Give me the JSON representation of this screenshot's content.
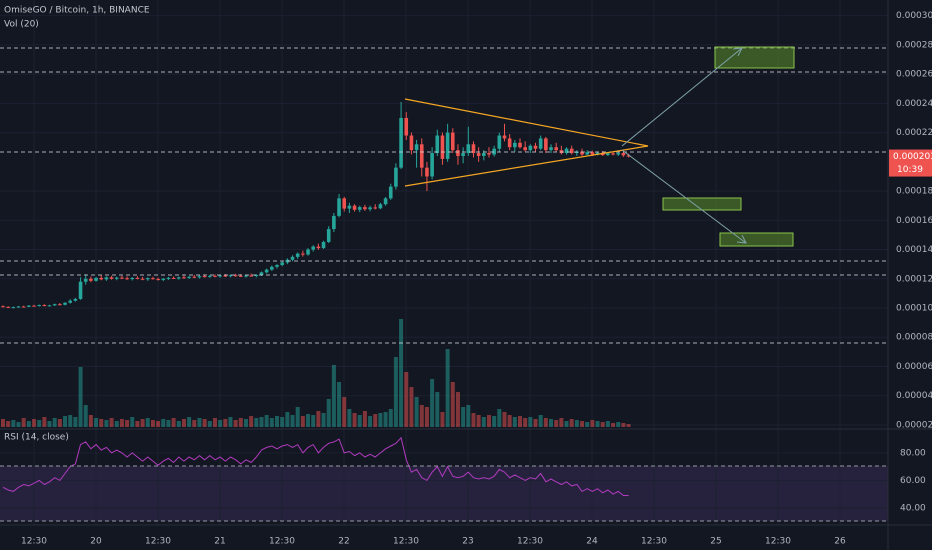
{
  "chart_data": {
    "type": "candlestick",
    "title": "OmiseGO / Bitcoin, 1h, BINANCE",
    "volume_label": "Vol (20)",
    "rsi_label": "RSI (14, close)",
    "last_price": {
      "value": 0.0002036,
      "label": "0.0002036"
    },
    "countdown": "10:39",
    "up_color": "#26a69a",
    "down_color": "#ef5350",
    "rsi_color": "#b03bbd",
    "grid": true,
    "x_labels": [
      "12:30",
      "20",
      "12:30",
      "21",
      "12:30",
      "22",
      "12:30",
      "23",
      "12:30",
      "24",
      "12:30",
      "25",
      "12:30",
      "26"
    ],
    "ylim": [
      1.86e-05,
      0.0003107
    ],
    "yticks": [
      {
        "value": 0.0003,
        "label": "0.0003000"
      },
      {
        "value": 0.00028,
        "label": "0.0002800"
      },
      {
        "value": 0.00026,
        "label": "0.0002600"
      },
      {
        "value": 0.00024,
        "label": "0.0002400"
      },
      {
        "value": 0.00022,
        "label": "0.0002200"
      },
      {
        "value": 0.00018,
        "label": "0.0001800"
      },
      {
        "value": 0.00016,
        "label": "0.0001600"
      },
      {
        "value": 0.00014,
        "label": "0.0001400"
      },
      {
        "value": 0.00012,
        "label": "0.0001200"
      },
      {
        "value": 0.0001,
        "label": "0.0001000"
      },
      {
        "value": 8e-05,
        "label": "0.0000800"
      },
      {
        "value": 6e-05,
        "label": "0.0000600"
      },
      {
        "value": 4e-05,
        "label": "0.0000400"
      },
      {
        "value": 2e-05,
        "label": "0.0000200"
      }
    ],
    "rsi_ylim": [
      30.5,
      93
    ],
    "rsi_yticks": [
      {
        "value": 80,
        "label": "80.00"
      },
      {
        "value": 60,
        "label": "60.00"
      },
      {
        "value": 40,
        "label": "40.00"
      }
    ],
    "ohlc": [
      [
        0.0001012,
        0.0001018,
        0.0001005,
        0.0001008
      ],
      [
        0.0001008,
        0.0001012,
        0.0001,
        0.0001004
      ],
      [
        0.0001004,
        0.000101,
        9.98e-05,
        0.0001006
      ],
      [
        0.0001006,
        0.0001014,
        0.0001002,
        0.000101
      ],
      [
        0.000101,
        0.0001016,
        0.0001004,
        0.0001008
      ],
      [
        0.0001008,
        0.000102,
        0.0001006,
        0.0001016
      ],
      [
        0.0001016,
        0.0001022,
        0.000101,
        0.0001014
      ],
      [
        0.0001014,
        0.0001024,
        0.000101,
        0.000102
      ],
      [
        0.000102,
        0.0001026,
        0.0001012,
        0.0001016
      ],
      [
        0.0001016,
        0.0001022,
        0.000101,
        0.0001018
      ],
      [
        0.0001018,
        0.000103,
        0.0001014,
        0.0001026
      ],
      [
        0.0001026,
        0.0001034,
        0.0001018,
        0.0001022
      ],
      [
        0.0001022,
        0.000104,
        0.0001018,
        0.0001036
      ],
      [
        0.0001036,
        0.000106,
        0.000103,
        0.000105
      ],
      [
        0.000105,
        0.000107,
        0.0001044,
        0.0001062
      ],
      [
        0.0001062,
        0.000121,
        0.0001056,
        0.000118
      ],
      [
        0.000118,
        0.000123,
        0.000116,
        0.00012
      ],
      [
        0.00012,
        0.0001215,
        0.0001176,
        0.0001186
      ],
      [
        0.0001186,
        0.0001212,
        0.000118,
        0.0001206
      ],
      [
        0.0001206,
        0.0001222,
        0.000119,
        0.0001196
      ],
      [
        0.0001196,
        0.0001216,
        0.0001186,
        0.000121
      ],
      [
        0.000121,
        0.000122,
        0.0001194,
        0.00012
      ],
      [
        0.00012,
        0.0001214,
        0.000119,
        0.0001208
      ],
      [
        0.0001208,
        0.000122,
        0.0001198,
        0.0001204
      ],
      [
        0.0001204,
        0.0001216,
        0.0001192,
        0.0001198
      ],
      [
        0.0001198,
        0.0001212,
        0.0001188,
        0.0001206
      ],
      [
        0.0001206,
        0.0001218,
        0.0001196,
        0.00012
      ],
      [
        0.00012,
        0.0001212,
        0.000119,
        0.0001196
      ],
      [
        0.0001196,
        0.000121,
        0.0001186,
        0.0001204
      ],
      [
        0.0001204,
        0.0001214,
        0.0001194,
        0.0001198
      ],
      [
        0.0001198,
        0.0001208,
        0.0001188,
        0.0001192
      ],
      [
        0.0001192,
        0.0001206,
        0.0001184,
        0.00012
      ],
      [
        0.00012,
        0.0001212,
        0.0001192,
        0.0001206
      ],
      [
        0.0001206,
        0.0001216,
        0.0001198,
        0.0001202
      ],
      [
        0.0001202,
        0.0001214,
        0.0001194,
        0.000121
      ],
      [
        0.000121,
        0.0001222,
        0.00012,
        0.0001206
      ],
      [
        0.0001206,
        0.0001218,
        0.0001198,
        0.0001214
      ],
      [
        0.0001214,
        0.0001226,
        0.0001204,
        0.000121
      ],
      [
        0.000121,
        0.0001224,
        0.0001202,
        0.0001218
      ],
      [
        0.0001218,
        0.0001228,
        0.0001208,
        0.0001214
      ],
      [
        0.0001214,
        0.0001226,
        0.0001206,
        0.000122
      ],
      [
        0.000122,
        0.000123,
        0.000121,
        0.0001216
      ],
      [
        0.0001216,
        0.0001228,
        0.0001208,
        0.0001222
      ],
      [
        0.0001222,
        0.0001232,
        0.0001212,
        0.0001218
      ],
      [
        0.0001218,
        0.000123,
        0.000121,
        0.0001224
      ],
      [
        0.0001224,
        0.0001234,
        0.0001214,
        0.000122
      ],
      [
        0.000122,
        0.0001232,
        0.0001212,
        0.0001216
      ],
      [
        0.0001216,
        0.0001228,
        0.0001208,
        0.0001222
      ],
      [
        0.0001222,
        0.0001236,
        0.0001214,
        0.0001218
      ],
      [
        0.0001218,
        0.0001232,
        0.000121,
        0.0001226
      ],
      [
        0.0001226,
        0.000125,
        0.000122,
        0.0001244
      ],
      [
        0.0001244,
        0.000127,
        0.0001236,
        0.0001262
      ],
      [
        0.0001262,
        0.000129,
        0.0001254,
        0.0001282
      ],
      [
        0.0001282,
        0.00013,
        0.000127,
        0.0001294
      ],
      [
        0.0001294,
        0.000132,
        0.0001286,
        0.0001312
      ],
      [
        0.0001312,
        0.000134,
        0.00013,
        0.000133
      ],
      [
        0.000133,
        0.000136,
        0.000132,
        0.000135
      ],
      [
        0.000135,
        0.000138,
        0.0001336,
        0.0001372
      ],
      [
        0.0001372,
        0.0001392,
        0.0001352,
        0.0001366
      ],
      [
        0.0001366,
        0.000141,
        0.0001358,
        0.00014
      ],
      [
        0.00014,
        0.000143,
        0.0001386,
        0.000142
      ],
      [
        0.000142,
        0.000144,
        0.0001398,
        0.000141
      ],
      [
        0.000141,
        0.000146,
        0.0001404,
        0.0001452
      ],
      [
        0.0001452,
        0.000156,
        0.0001444,
        0.000154
      ],
      [
        0.000154,
        0.000165,
        0.000152,
        0.000163
      ],
      [
        0.000163,
        0.000178,
        0.000162,
        0.000175
      ],
      [
        0.000175,
        0.000176,
        0.000166,
        0.000168
      ],
      [
        0.000168,
        0.000172,
        0.000165,
        0.00017
      ],
      [
        0.00017,
        0.000171,
        0.000166,
        0.0001672
      ],
      [
        0.0001672,
        0.00017,
        0.0001656,
        0.000169
      ],
      [
        0.000169,
        0.0001706,
        0.0001664,
        0.0001676
      ],
      [
        0.0001676,
        0.00017,
        0.0001662,
        0.0001688
      ],
      [
        0.0001688,
        0.000171,
        0.0001674,
        0.0001682
      ],
      [
        0.0001682,
        0.000172,
        0.0001676,
        0.000171
      ],
      [
        0.000171,
        0.000176,
        0.00017,
        0.000175
      ],
      [
        0.000175,
        0.000185,
        0.000174,
        0.000183
      ],
      [
        0.000183,
        0.000199,
        0.000181,
        0.000196
      ],
      [
        0.000196,
        0.000241,
        0.000195,
        0.00023
      ],
      [
        0.00023,
        0.000234,
        0.000215,
        0.000218
      ],
      [
        0.000218,
        0.00022,
        0.000205,
        0.000208
      ],
      [
        0.000208,
        0.000215,
        0.000196,
        0.000212
      ],
      [
        0.000212,
        0.000216,
        0.00019,
        0.000196
      ],
      [
        0.000196,
        0.0002,
        0.00018,
        0.00019
      ],
      [
        0.00019,
        0.00021,
        0.000188,
        0.000206
      ],
      [
        0.000206,
        0.000222,
        0.000204,
        0.000218
      ],
      [
        0.000218,
        0.00022,
        0.000198,
        0.000202
      ],
      [
        0.000202,
        0.000226,
        0.0002,
        0.00022
      ],
      [
        0.00022,
        0.000223,
        0.000206,
        0.000208
      ],
      [
        0.000208,
        0.000212,
        0.000198,
        0.000204
      ],
      [
        0.000204,
        0.00021,
        0.000199,
        0.000206
      ],
      [
        0.000206,
        0.000224,
        0.000204,
        0.000212
      ],
      [
        0.000212,
        0.000214,
        0.000203,
        0.000206
      ],
      [
        0.000206,
        0.00021,
        0.0002,
        0.000204
      ],
      [
        0.000204,
        0.000208,
        0.000201,
        0.000206
      ],
      [
        0.000206,
        0.00021,
        0.000203,
        0.000205
      ],
      [
        0.000205,
        0.000211,
        0.0002036,
        0.000209
      ],
      [
        0.000209,
        0.00022,
        0.000207,
        0.000218
      ],
      [
        0.000218,
        0.000226,
        0.000214,
        0.000216
      ],
      [
        0.000216,
        0.000219,
        0.000208,
        0.00021
      ],
      [
        0.00021,
        0.000215,
        0.000207,
        0.000213
      ],
      [
        0.000213,
        0.000216,
        0.000209,
        0.00021
      ],
      [
        0.00021,
        0.000214,
        0.000207,
        0.000208
      ],
      [
        0.000208,
        0.000212,
        0.000206,
        0.000211
      ],
      [
        0.000211,
        0.000213,
        0.000207,
        0.000209
      ],
      [
        0.000209,
        0.000218,
        0.000208,
        0.000216
      ],
      [
        0.000216,
        0.000217,
        0.000206,
        0.000208
      ],
      [
        0.000208,
        0.000212,
        0.000206,
        0.00021
      ],
      [
        0.00021,
        0.000213,
        0.000207,
        0.000208
      ],
      [
        0.000208,
        0.000211,
        0.000205,
        0.000206
      ],
      [
        0.000206,
        0.00021,
        0.000205,
        0.000209
      ],
      [
        0.000209,
        0.000211,
        0.000205,
        0.000206
      ],
      [
        0.000206,
        0.000208,
        0.000204,
        0.000207
      ],
      [
        0.000207,
        0.000209,
        0.000204,
        0.000205
      ],
      [
        0.000205,
        0.000208,
        0.0002046,
        0.0002066
      ],
      [
        0.0002066,
        0.0002076,
        0.000204,
        0.000205
      ],
      [
        0.000205,
        0.000207,
        0.0002044,
        0.0002062
      ],
      [
        0.0002062,
        0.0002074,
        0.000204,
        0.0002046
      ],
      [
        0.0002046,
        0.0002066,
        0.000204,
        0.0002058
      ],
      [
        0.0002058,
        0.000207,
        0.0002044,
        0.000205
      ],
      [
        0.000205,
        0.0002066,
        0.000204,
        0.000206
      ],
      [
        0.000206,
        0.0002068,
        0.0002034,
        0.0002044
      ],
      [
        0.0002044,
        0.0002056,
        0.000203,
        0.0002036
      ]
    ],
    "volumes": [
      8,
      6,
      7,
      5,
      9,
      6,
      8,
      7,
      10,
      6,
      9,
      8,
      11,
      12,
      10,
      60,
      22,
      12,
      9,
      8,
      7,
      9,
      6,
      8,
      7,
      10,
      6,
      8,
      9,
      7,
      6,
      8,
      7,
      9,
      6,
      8,
      10,
      7,
      9,
      8,
      6,
      9,
      7,
      8,
      10,
      7,
      9,
      8,
      11,
      9,
      10,
      12,
      9,
      11,
      10,
      15,
      12,
      20,
      11,
      13,
      12,
      16,
      14,
      28,
      62,
      45,
      30,
      18,
      14,
      12,
      16,
      11,
      13,
      14,
      15,
      18,
      70,
      108,
      55,
      40,
      30,
      22,
      20,
      48,
      35,
      15,
      78,
      45,
      35,
      20,
      22,
      14,
      12,
      10,
      12,
      11,
      18,
      15,
      12,
      10,
      11,
      9,
      10,
      8,
      12,
      9,
      8,
      7,
      9,
      6,
      8,
      7,
      6,
      5,
      7,
      6,
      5,
      6,
      4,
      5,
      4,
      3
    ],
    "rsi": [
      55,
      53,
      52,
      55,
      57,
      56,
      58,
      60,
      57,
      59,
      62,
      60,
      65,
      70,
      72,
      86,
      88,
      83,
      86,
      82,
      84,
      80,
      82,
      80,
      77,
      80,
      77,
      74,
      77,
      74,
      71,
      74,
      76,
      73,
      77,
      74,
      77,
      75,
      78,
      75,
      78,
      75,
      77,
      74,
      77,
      75,
      72,
      75,
      73,
      77,
      82,
      84,
      85,
      83,
      85,
      86,
      84,
      86,
      80,
      84,
      86,
      80,
      84,
      87,
      88,
      90,
      80,
      81,
      78,
      80,
      77,
      79,
      77,
      80,
      83,
      85,
      87,
      91,
      75,
      66,
      68,
      62,
      60,
      66,
      70,
      63,
      70,
      63,
      62,
      63,
      66,
      62,
      61,
      62,
      61,
      63,
      68,
      66,
      62,
      64,
      62,
      60,
      62,
      61,
      65,
      59,
      61,
      59,
      57,
      59,
      56,
      57,
      52,
      54,
      52,
      54,
      51,
      53,
      50,
      52,
      49,
      49
    ]
  }
}
